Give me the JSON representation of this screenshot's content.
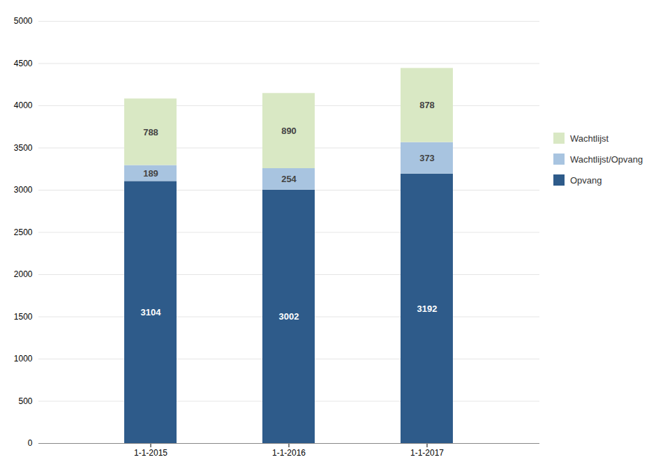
{
  "chart_data": {
    "type": "bar",
    "stacked": true,
    "categories": [
      "1-1-2015",
      "1-1-2016",
      "1-1-2017"
    ],
    "series": [
      {
        "name": "Opvang",
        "color": "#2E5B8A",
        "values": [
          3104,
          3002,
          3192
        ]
      },
      {
        "name": "Wachtlijst/Opvang",
        "color": "#A8C4E0",
        "values": [
          189,
          254,
          373
        ]
      },
      {
        "name": "Wachtlijst",
        "color": "#D9E8C4",
        "values": [
          788,
          890,
          878
        ]
      }
    ],
    "ylim": [
      0,
      5000
    ],
    "yticks": [
      0,
      500,
      1000,
      1500,
      2000,
      2500,
      3000,
      3500,
      4000,
      4500,
      5000
    ],
    "grid": true,
    "data_labels": true,
    "legend": "right"
  }
}
